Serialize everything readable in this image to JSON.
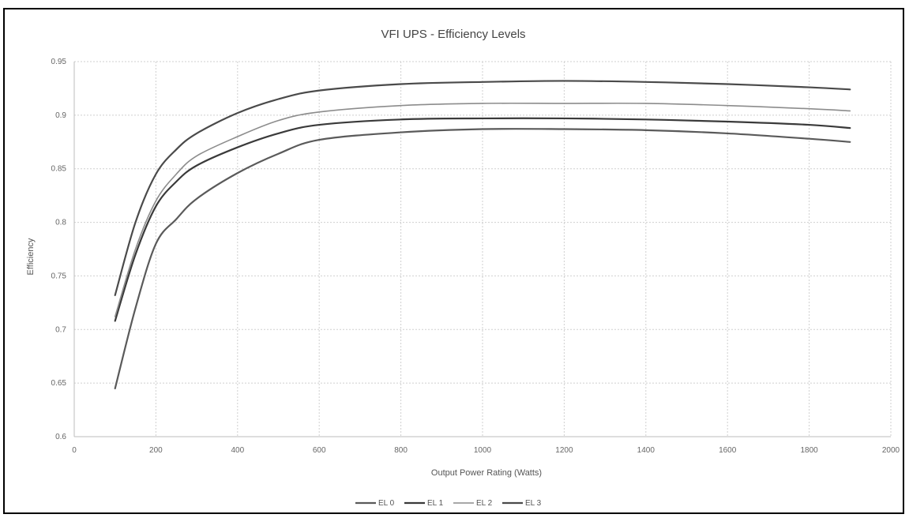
{
  "chart_data": {
    "type": "line",
    "title": "VFI UPS - Efficiency Levels",
    "xlabel": "Output Power Rating (Watts)",
    "ylabel": "Efficiency",
    "xlim": [
      0,
      2000
    ],
    "ylim": [
      0.6,
      0.95
    ],
    "x_ticks": [
      "0",
      "200",
      "400",
      "600",
      "800",
      "1000",
      "1200",
      "1400",
      "1600",
      "1800",
      "2000"
    ],
    "y_ticks": [
      "0.6",
      "0.65",
      "0.7",
      "0.75",
      "0.8",
      "0.85",
      "0.9",
      "0.95"
    ],
    "x_tick_values": [
      0,
      200,
      400,
      600,
      800,
      1000,
      1200,
      1400,
      1600,
      1800,
      2000
    ],
    "y_tick_values": [
      0.6,
      0.65,
      0.7,
      0.75,
      0.8,
      0.85,
      0.9,
      0.95
    ],
    "grid": true,
    "legend_position": "bottom",
    "x": [
      100,
      150,
      200,
      250,
      300,
      400,
      500,
      600,
      800,
      1000,
      1200,
      1400,
      1600,
      1800,
      1900
    ],
    "series": [
      {
        "name": "EL 0",
        "color": "#5a5a5a",
        "values": [
          0.645,
          0.72,
          0.78,
          0.803,
          0.822,
          0.846,
          0.864,
          0.877,
          0.884,
          0.887,
          0.887,
          0.886,
          0.883,
          0.878,
          0.875
        ]
      },
      {
        "name": "EL 1",
        "color": "#3a3a3a",
        "values": [
          0.708,
          0.77,
          0.815,
          0.838,
          0.853,
          0.87,
          0.883,
          0.891,
          0.896,
          0.897,
          0.897,
          0.896,
          0.894,
          0.891,
          0.888
        ]
      },
      {
        "name": "EL 2",
        "color": "#8c8c8c",
        "values": [
          0.712,
          0.775,
          0.82,
          0.845,
          0.862,
          0.88,
          0.895,
          0.903,
          0.909,
          0.911,
          0.911,
          0.911,
          0.909,
          0.906,
          0.904
        ]
      },
      {
        "name": "EL 3",
        "color": "#4a4a4a",
        "values": [
          0.732,
          0.8,
          0.845,
          0.868,
          0.883,
          0.902,
          0.915,
          0.923,
          0.929,
          0.931,
          0.932,
          0.931,
          0.929,
          0.926,
          0.924
        ]
      }
    ]
  }
}
